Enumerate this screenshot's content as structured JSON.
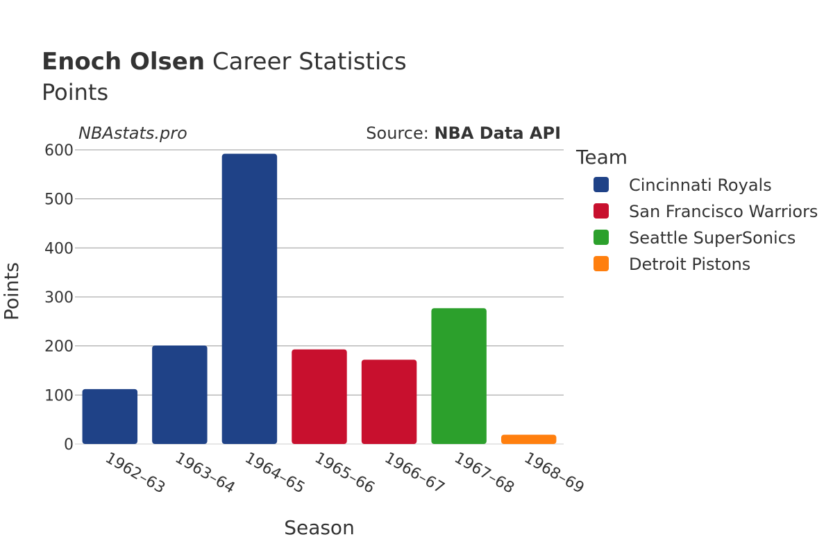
{
  "header": {
    "name": "Enoch Olsen",
    "title_rest": " Career Statistics",
    "subtitle": "Points"
  },
  "watermark": "NBAstats.pro",
  "source": {
    "prefix": "Source: ",
    "name": "NBA Data API"
  },
  "legend": {
    "title": "Team",
    "items": [
      {
        "label": "Cincinnati Royals",
        "color": "#1f4287"
      },
      {
        "label": "San Francisco Warriors",
        "color": "#c8102e"
      },
      {
        "label": "Seattle SuperSonics",
        "color": "#2ca02c"
      },
      {
        "label": "Detroit Pistons",
        "color": "#ff7f0e"
      }
    ]
  },
  "chart_data": {
    "type": "bar",
    "title": "Enoch Olsen Career Statistics",
    "subtitle": "Points",
    "xlabel": "Season",
    "ylabel": "Points",
    "ylim": [
      0,
      600
    ],
    "yticks": [
      0,
      100,
      200,
      300,
      400,
      500,
      600
    ],
    "grid": true,
    "legend_position": "right",
    "categories": [
      "1962–63",
      "1963–64",
      "1964–65",
      "1965–66",
      "1966–67",
      "1967–68",
      "1968–69"
    ],
    "values": [
      112,
      201,
      592,
      193,
      172,
      277,
      19
    ],
    "teams": [
      "Cincinnati Royals",
      "Cincinnati Royals",
      "Cincinnati Royals",
      "San Francisco Warriors",
      "San Francisco Warriors",
      "Seattle SuperSonics",
      "Detroit Pistons"
    ]
  }
}
